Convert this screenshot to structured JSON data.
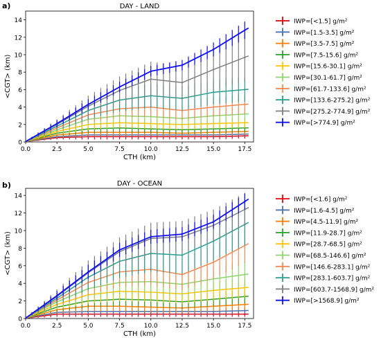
{
  "figure": {
    "panels": [
      {
        "label": "a)",
        "title": "DAY - LAND"
      },
      {
        "label": "b)",
        "title": "DAY - OCEAN"
      }
    ]
  },
  "chart_data": [
    {
      "type": "line",
      "panel_label": "a)",
      "title": "DAY - LAND",
      "xlabel": "CTH (km)",
      "ylabel": "<CGT> (km)",
      "xlim": [
        0,
        18.2
      ],
      "ylim": [
        0,
        15
      ],
      "xticks": [
        "0.0",
        "2.5",
        "5.0",
        "7.5",
        "10.0",
        "12.5",
        "15.0",
        "17.5"
      ],
      "yticks": [
        "0",
        "2",
        "4",
        "6",
        "8",
        "10",
        "12",
        "14"
      ],
      "grid": false,
      "legend_position": "outside-right",
      "error_bars": "vertical, symmetric",
      "x": [
        0.0,
        2.5,
        5.0,
        7.5,
        10.0,
        12.5,
        15.0,
        17.5
      ],
      "series": [
        {
          "name": "IWP=[<1.5] g/m²",
          "color": "#e8000b",
          "values": [
            0.05,
            0.5,
            0.6,
            0.6,
            0.6,
            0.6,
            0.6,
            0.7
          ],
          "errors": [
            0.05,
            0.2,
            0.3,
            0.3,
            0.3,
            0.3,
            0.3,
            0.3
          ]
        },
        {
          "name": "IWP=[1.5-3.5] g/m²",
          "color": "#4c72b0",
          "values": [
            0.05,
            0.6,
            0.8,
            0.8,
            0.8,
            0.8,
            0.8,
            0.9
          ],
          "errors": [
            0.05,
            0.2,
            0.3,
            0.3,
            0.3,
            0.3,
            0.3,
            0.3
          ]
        },
        {
          "name": "IWP=[3.5-7.5] g/m²",
          "color": "#ff7c00",
          "values": [
            0.05,
            0.8,
            1.1,
            1.1,
            1.1,
            1.0,
            1.1,
            1.2
          ],
          "errors": [
            0.05,
            0.3,
            0.4,
            0.4,
            0.4,
            0.4,
            0.4,
            0.4
          ]
        },
        {
          "name": "IWP=[7.5-15.6] g/m²",
          "color": "#2ca02c",
          "values": [
            0.05,
            1.0,
            1.5,
            1.6,
            1.5,
            1.4,
            1.5,
            1.6
          ],
          "errors": [
            0.05,
            0.3,
            0.5,
            0.5,
            0.5,
            0.5,
            0.5,
            0.5
          ]
        },
        {
          "name": "IWP=[15.6-30.1] g/m²",
          "color": "#ffc400",
          "values": [
            0.05,
            1.2,
            2.0,
            2.2,
            2.1,
            2.0,
            2.1,
            2.2
          ],
          "errors": [
            0.05,
            0.4,
            0.6,
            0.6,
            0.6,
            0.6,
            0.6,
            0.6
          ]
        },
        {
          "name": "IWP=[30.1-61.7] g/m²",
          "color": "#8ed36e",
          "values": [
            0.05,
            1.4,
            2.6,
            3.0,
            2.9,
            2.7,
            3.0,
            3.2
          ],
          "errors": [
            0.05,
            0.4,
            0.7,
            0.8,
            0.8,
            0.8,
            0.8,
            0.8
          ]
        },
        {
          "name": "IWP=[61.7-133.6] g/m²",
          "color": "#f08a55",
          "values": [
            0.05,
            1.6,
            3.1,
            3.8,
            4.0,
            3.6,
            4.0,
            4.3
          ],
          "errors": [
            0.05,
            0.5,
            0.9,
            1.0,
            1.1,
            1.1,
            1.1,
            1.1
          ]
        },
        {
          "name": "IWP=[133.6-275.2] g/m²",
          "color": "#2a9d8f",
          "values": [
            0.05,
            1.8,
            3.6,
            4.8,
            5.3,
            5.0,
            5.7,
            6.0
          ],
          "errors": [
            0.05,
            0.5,
            1.0,
            1.3,
            1.4,
            1.4,
            1.4,
            1.4
          ]
        },
        {
          "name": "IWP=[275.2-774.9] g/m²",
          "color": "#7f7f7f",
          "values": [
            0.05,
            2.0,
            4.1,
            5.9,
            7.2,
            6.8,
            8.3,
            9.7
          ],
          "errors": [
            0.05,
            0.6,
            1.2,
            1.6,
            2.0,
            2.0,
            2.4,
            2.8
          ]
        },
        {
          "name": "IWP=[>774.9] g/m²",
          "color": "#1010f0",
          "values": [
            0.05,
            2.1,
            4.3,
            6.3,
            8.1,
            8.8,
            10.6,
            12.8
          ],
          "errors": [
            0.05,
            0.4,
            0.6,
            0.6,
            0.6,
            0.6,
            0.8,
            1.0
          ]
        }
      ]
    },
    {
      "type": "line",
      "panel_label": "b)",
      "title": "DAY - OCEAN",
      "xlabel": "CTH (km)",
      "ylabel": "<CGT> (km)",
      "xlim": [
        0,
        18.2
      ],
      "ylim": [
        0,
        14.8
      ],
      "xticks": [
        "0.0",
        "2.5",
        "5.0",
        "7.5",
        "10.0",
        "12.5",
        "15.0",
        "17.5"
      ],
      "yticks": [
        "0",
        "2",
        "4",
        "6",
        "8",
        "10",
        "12",
        "14"
      ],
      "grid": false,
      "legend_position": "outside-right",
      "error_bars": "vertical, symmetric",
      "x": [
        0.0,
        2.5,
        5.0,
        7.5,
        10.0,
        12.5,
        15.0,
        17.5
      ],
      "series": [
        {
          "name": "IWP=[<1.6] g/m²",
          "color": "#e8000b",
          "values": [
            0.05,
            0.5,
            0.5,
            0.5,
            0.5,
            0.5,
            0.5,
            0.5
          ],
          "errors": [
            0.05,
            0.3,
            0.3,
            0.3,
            0.3,
            0.3,
            0.3,
            0.3
          ]
        },
        {
          "name": "IWP=[1.6-4.5] g/m²",
          "color": "#4c72b0",
          "values": [
            0.05,
            0.7,
            0.8,
            0.8,
            0.8,
            0.8,
            0.8,
            0.9
          ],
          "errors": [
            0.05,
            0.3,
            0.4,
            0.4,
            0.4,
            0.4,
            0.4,
            0.4
          ]
        },
        {
          "name": "IWP=[4.5-11.9] g/m²",
          "color": "#ff7c00",
          "values": [
            0.05,
            1.0,
            1.4,
            1.4,
            1.3,
            1.2,
            1.4,
            1.6
          ],
          "errors": [
            0.05,
            0.4,
            0.6,
            0.6,
            0.6,
            0.6,
            0.6,
            0.6
          ]
        },
        {
          "name": "IWP=[11.9-28.7] g/m²",
          "color": "#2ca02c",
          "values": [
            0.05,
            1.3,
            2.0,
            2.2,
            2.1,
            1.9,
            2.2,
            2.5
          ],
          "errors": [
            0.05,
            0.5,
            0.8,
            0.8,
            0.8,
            0.8,
            0.8,
            0.8
          ]
        },
        {
          "name": "IWP=[28.7-68.5] g/m²",
          "color": "#ffc400",
          "values": [
            0.05,
            1.6,
            2.7,
            3.1,
            3.0,
            2.8,
            3.2,
            3.5
          ],
          "errors": [
            0.05,
            0.6,
            1.0,
            1.1,
            1.1,
            1.1,
            1.1,
            1.1
          ]
        },
        {
          "name": "IWP=[68.5-146.6] g/m²",
          "color": "#8ed36e",
          "values": [
            0.05,
            1.9,
            3.4,
            4.1,
            4.2,
            3.9,
            4.5,
            5.0
          ],
          "errors": [
            0.05,
            0.7,
            1.2,
            1.4,
            1.4,
            1.4,
            1.4,
            1.4
          ]
        },
        {
          "name": "IWP=[146.6-283.1] g/m²",
          "color": "#f08a55",
          "values": [
            0.05,
            2.1,
            4.1,
            5.3,
            5.6,
            5.0,
            6.4,
            8.3
          ],
          "errors": [
            0.05,
            0.8,
            1.4,
            1.7,
            1.8,
            1.8,
            1.9,
            2.0
          ]
        },
        {
          "name": "IWP=[283.1-603.7] g/m²",
          "color": "#2a9d8f",
          "values": [
            0.05,
            2.3,
            4.7,
            6.5,
            7.4,
            7.2,
            8.8,
            10.7
          ],
          "errors": [
            0.05,
            0.8,
            1.5,
            1.9,
            2.1,
            2.1,
            2.2,
            2.4
          ]
        },
        {
          "name": "IWP=[603.7-1568.9] g/m²",
          "color": "#7f7f7f",
          "values": [
            0.05,
            2.5,
            5.2,
            7.6,
            9.1,
            9.3,
            10.6,
            12.4
          ],
          "errors": [
            0.05,
            0.8,
            1.4,
            1.6,
            1.8,
            1.8,
            1.8,
            1.9
          ]
        },
        {
          "name": "IWP=[>1568.9] g/m²",
          "color": "#1010f0",
          "values": [
            0.05,
            2.6,
            5.3,
            7.8,
            9.3,
            9.6,
            11.0,
            13.3
          ],
          "errors": [
            0.05,
            0.5,
            0.8,
            0.8,
            0.8,
            0.8,
            0.8,
            0.9
          ]
        }
      ]
    }
  ]
}
